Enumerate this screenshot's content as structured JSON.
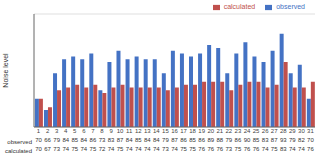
{
  "chart_data": {
    "type": "bar",
    "categories": [
      1,
      2,
      3,
      4,
      5,
      6,
      7,
      8,
      9,
      10,
      11,
      12,
      13,
      14,
      15,
      16,
      17,
      18,
      19,
      20,
      21,
      22,
      23,
      24,
      25,
      26,
      27,
      28,
      29,
      30,
      31
    ],
    "series": [
      {
        "name": "observed",
        "color": "#4472C4",
        "values": [
          70,
          66,
          79,
          84,
          85,
          84,
          86,
          73,
          83,
          87,
          84,
          85,
          84,
          84,
          79,
          87,
          86,
          85,
          86,
          89,
          88,
          79,
          86,
          90,
          85,
          83,
          87,
          93,
          79,
          82,
          70
        ]
      },
      {
        "name": "calculated",
        "color": "#C0504D",
        "values": [
          70,
          67,
          73,
          74,
          75,
          74,
          75,
          72,
          74,
          75,
          74,
          74,
          74,
          74,
          73,
          74,
          75,
          75,
          76,
          76,
          76,
          73,
          75,
          76,
          76,
          74,
          75,
          83,
          74,
          74,
          76
        ]
      }
    ],
    "ylabel": "Noise level",
    "ylim": [
      60,
      100
    ],
    "yticks": [
      60,
      65,
      70,
      75,
      80,
      85,
      90,
      95,
      100
    ],
    "grid": true,
    "tick_labels": "x",
    "data_labels": true,
    "legend": "top"
  }
}
